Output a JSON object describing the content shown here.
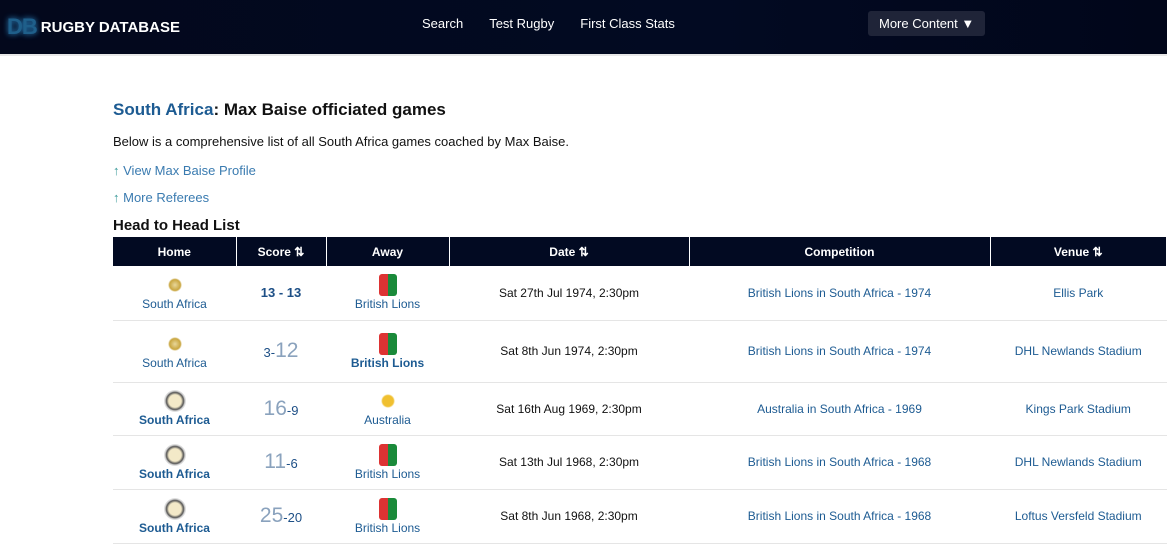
{
  "nav": {
    "logo_mark": "DB",
    "logo_text": "RUGBY DATABASE",
    "links": [
      "Search",
      "Test Rugby",
      "First Class Stats"
    ],
    "more": "More Content ▼"
  },
  "page": {
    "team": "South Africa",
    "title_rest": ": Max Baise officiated games",
    "intro": "Below is a comprehensive list of all South Africa games coached by Max Baise.",
    "link1": "View Max Baise Profile",
    "link2": "More Referees",
    "arrow": "↑",
    "section": "Head to Head List"
  },
  "table": {
    "headers": [
      "Home",
      "Score ⇅",
      "Away",
      "Date ⇅",
      "Competition",
      "Venue ⇅"
    ],
    "rows": [
      {
        "home": "South Africa",
        "hs": "13",
        "sep": " - ",
        "as": "13",
        "away": "British Lions",
        "date": "Sat 27th Jul 1974, 2:30pm",
        "comp": "British Lions in South Africa - 1974",
        "venue": "Ellis Park"
      },
      {
        "home": "South Africa",
        "hs": "3",
        "sep": "-",
        "as": "12",
        "away": "British Lions",
        "date": "Sat 8th Jun 1974, 2:30pm",
        "comp": "British Lions in South Africa - 1974",
        "venue": "DHL Newlands Stadium"
      },
      {
        "home": "South Africa",
        "hs": "16",
        "sep": "-",
        "as": "9",
        "away": "Australia",
        "date": "Sat 16th Aug 1969, 2:30pm",
        "comp": "Australia in South Africa - 1969",
        "venue": "Kings Park Stadium"
      },
      {
        "home": "South Africa",
        "hs": "11",
        "sep": "-",
        "as": "6",
        "away": "British Lions",
        "date": "Sat 13th Jul 1968, 2:30pm",
        "comp": "British Lions in South Africa - 1968",
        "venue": "DHL Newlands Stadium"
      },
      {
        "home": "South Africa",
        "hs": "25",
        "sep": "-",
        "as": "20",
        "away": "British Lions",
        "date": "Sat 8th Jun 1968, 2:30pm",
        "comp": "British Lions in South Africa - 1968",
        "venue": "Loftus Versfeld Stadium"
      }
    ]
  }
}
